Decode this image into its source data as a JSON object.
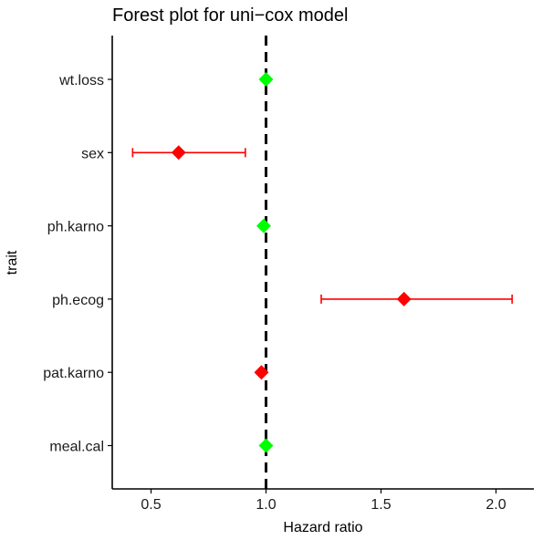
{
  "chart_data": {
    "type": "scatter",
    "subtype": "forest",
    "title": "Forest plot for uni−cox model",
    "xlabel": "Hazard ratio",
    "ylabel": "trait",
    "xlim": [
      0.34,
      2.09
    ],
    "xticks": [
      0.5,
      1.0,
      1.5,
      2.0
    ],
    "xtick_labels": [
      "0.5",
      "1.0",
      "1.5",
      "2.0"
    ],
    "reference_line": {
      "x": 1.0,
      "style": "dashed",
      "color": "#000000"
    },
    "grid": false,
    "legend": "none",
    "colors": {
      "significant": "#ff0000",
      "not_significant": "#00ff00"
    },
    "categories": [
      "wt.loss",
      "sex",
      "ph.karno",
      "ph.ecog",
      "pat.karno",
      "meal.cal"
    ],
    "points": [
      {
        "trait": "wt.loss",
        "hr": 1.0,
        "lower": 0.99,
        "upper": 1.01,
        "significant": false
      },
      {
        "trait": "sex",
        "hr": 0.62,
        "lower": 0.42,
        "upper": 0.91,
        "significant": true
      },
      {
        "trait": "ph.karno",
        "hr": 0.99,
        "lower": 0.98,
        "upper": 1.0,
        "significant": false
      },
      {
        "trait": "ph.ecog",
        "hr": 1.6,
        "lower": 1.24,
        "upper": 2.07,
        "significant": true
      },
      {
        "trait": "pat.karno",
        "hr": 0.98,
        "lower": 0.97,
        "upper": 0.99,
        "significant": true
      },
      {
        "trait": "meal.cal",
        "hr": 1.0,
        "lower": 1.0,
        "upper": 1.0,
        "significant": false
      }
    ]
  }
}
